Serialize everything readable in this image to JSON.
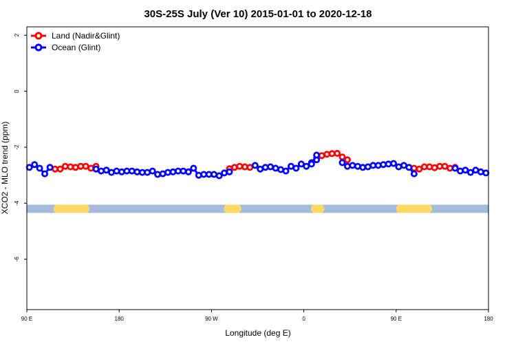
{
  "chart_data": {
    "type": "line",
    "title": "30S-25S July (Ver 10)   2015-01-01 to 2020-12-18",
    "xlabel": "Longitude (deg E)",
    "ylabel": "XCO2 - MLO trend (ppm)",
    "x_ticks": [
      {
        "value": 90,
        "label": "90 E"
      },
      {
        "value": 180,
        "label": "180"
      },
      {
        "value": 270,
        "label": "90 W"
      },
      {
        "value": 360,
        "label": "0"
      },
      {
        "value": 450,
        "label": "90 E"
      },
      {
        "value": 540,
        "label": "180"
      }
    ],
    "y_ticks": [
      {
        "value": 2,
        "label": "2"
      },
      {
        "value": 0,
        "label": "0"
      },
      {
        "value": -2,
        "label": "-2"
      },
      {
        "value": -4,
        "label": "-4"
      },
      {
        "value": -6,
        "label": "-6"
      }
    ],
    "xlim": [
      90,
      540
    ],
    "ylim": [
      -7.8,
      2.3
    ],
    "grid": false,
    "legend_position": "top-left",
    "series": [
      {
        "name": "Land (Nadir&Glint)",
        "color": "#ff0000",
        "x": [
          117.5,
          122.5,
          127.5,
          132.5,
          137.5,
          142.5,
          147.5,
          152.5,
          157.5,
          287.5,
          292.5,
          297.5,
          302.5,
          307.5,
          372.5,
          377.5,
          382.5,
          387.5,
          392.5,
          397.5,
          402.5,
          467.5,
          472.5,
          477.5,
          482.5,
          487.5,
          492.5,
          497.5,
          502.5,
          507.5
        ],
        "y": [
          -2.78,
          -2.78,
          -2.68,
          -2.7,
          -2.72,
          -2.68,
          -2.68,
          -2.75,
          -2.68,
          -2.77,
          -2.72,
          -2.68,
          -2.7,
          -2.72,
          -2.38,
          -2.3,
          -2.25,
          -2.23,
          -2.22,
          -2.35,
          -2.45,
          -2.75,
          -2.78,
          -2.7,
          -2.7,
          -2.73,
          -2.68,
          -2.68,
          -2.75,
          -2.72
        ]
      },
      {
        "name": "Ocean (Glint)",
        "color": "#0000ff",
        "x": [
          92.5,
          97.5,
          102.5,
          107.5,
          112.5,
          157.5,
          162.5,
          167.5,
          172.5,
          177.5,
          182.5,
          187.5,
          192.5,
          197.5,
          202.5,
          207.5,
          212.5,
          217.5,
          222.5,
          227.5,
          232.5,
          237.5,
          242.5,
          247.5,
          252.5,
          257.5,
          262.5,
          267.5,
          272.5,
          277.5,
          282.5,
          287.5,
          312.5,
          317.5,
          322.5,
          327.5,
          332.5,
          337.5,
          342.5,
          347.5,
          352.5,
          357.5,
          362.5,
          367.5,
          372.5,
          397.5,
          402.5,
          407.5,
          412.5,
          417.5,
          422.5,
          427.5,
          432.5,
          437.5,
          442.5,
          447.5,
          452.5,
          457.5,
          462.5,
          467.5,
          507.5,
          512.5,
          517.5,
          522.5,
          527.5,
          532.5,
          537.5
        ],
        "y": [
          -2.72,
          -2.62,
          -2.75,
          -2.95,
          -2.72,
          -2.78,
          -2.85,
          -2.82,
          -2.9,
          -2.85,
          -2.88,
          -2.85,
          -2.85,
          -2.88,
          -2.9,
          -2.9,
          -2.85,
          -2.97,
          -2.95,
          -2.9,
          -2.88,
          -2.85,
          -2.85,
          -2.88,
          -2.75,
          -3.0,
          -2.97,
          -2.97,
          -2.97,
          -3.02,
          -2.92,
          -2.88,
          -2.65,
          -2.78,
          -2.72,
          -2.7,
          -2.75,
          -2.8,
          -2.85,
          -2.68,
          -2.75,
          -2.6,
          -2.68,
          -2.55,
          -2.45,
          -2.55,
          -2.68,
          -2.65,
          -2.68,
          -2.72,
          -2.7,
          -2.65,
          -2.65,
          -2.62,
          -2.6,
          -2.58,
          -2.7,
          -2.65,
          -2.72,
          -2.95,
          -2.75,
          -2.85,
          -2.82,
          -2.9,
          -2.82,
          -2.88,
          -2.92
        ]
      },
      {
        "name": "",
        "color": "#0000ff",
        "x": [
          367.5,
          372.5
        ],
        "y": [
          -2.6,
          -2.28
        ]
      }
    ],
    "surface_band": {
      "y": -4.2,
      "ocean_color": "#a4bbdc",
      "land_color": "#ffd966",
      "land_segments": [
        [
          114,
          153
        ],
        [
          280,
          301
        ],
        [
          365,
          382
        ],
        [
          448,
          487
        ]
      ]
    }
  }
}
